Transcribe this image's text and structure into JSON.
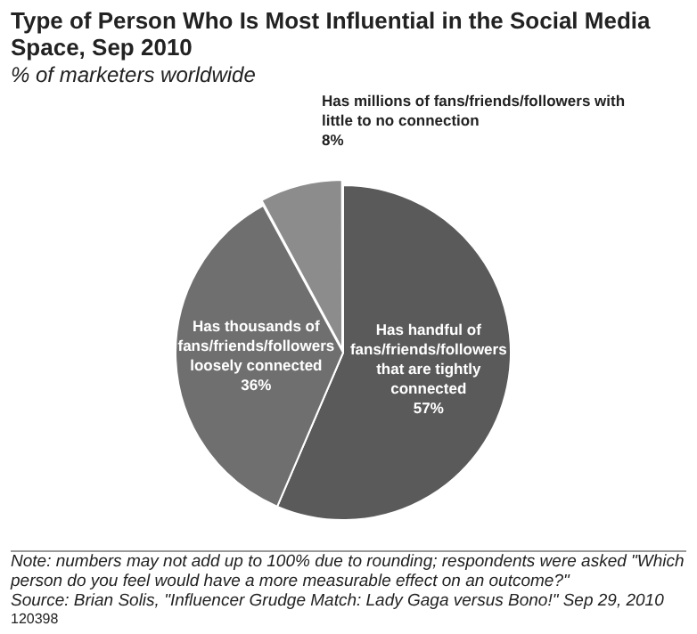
{
  "chart_data": {
    "type": "pie",
    "title": "Type of Person Who Is Most Influential in the Social Media Space, Sep 2010",
    "subtitle": "% of marketers worldwide",
    "categories": [
      "Has handful of fans/friends/followers that are tightly connected",
      "Has thousands of fans/friends/followers loosely connected",
      "Has millions of fans/friends/followers with little to no connection"
    ],
    "values": [
      57,
      36,
      8
    ],
    "value_labels": [
      "57%",
      "36%",
      "8%"
    ],
    "colors": [
      "#5a5a5a",
      "#6f6f6f",
      "#8c8c8c"
    ],
    "annotations": [
      "Note: numbers may not add up to 100% due to rounding; respondents were asked \"Which person do you feel would have a more measurable effect on an outcome?\"",
      "Source: Brian Solis, \"Influencer Grudge Match: Lady Gaga versus Bono!\" Sep 29, 2010",
      "120398"
    ]
  }
}
